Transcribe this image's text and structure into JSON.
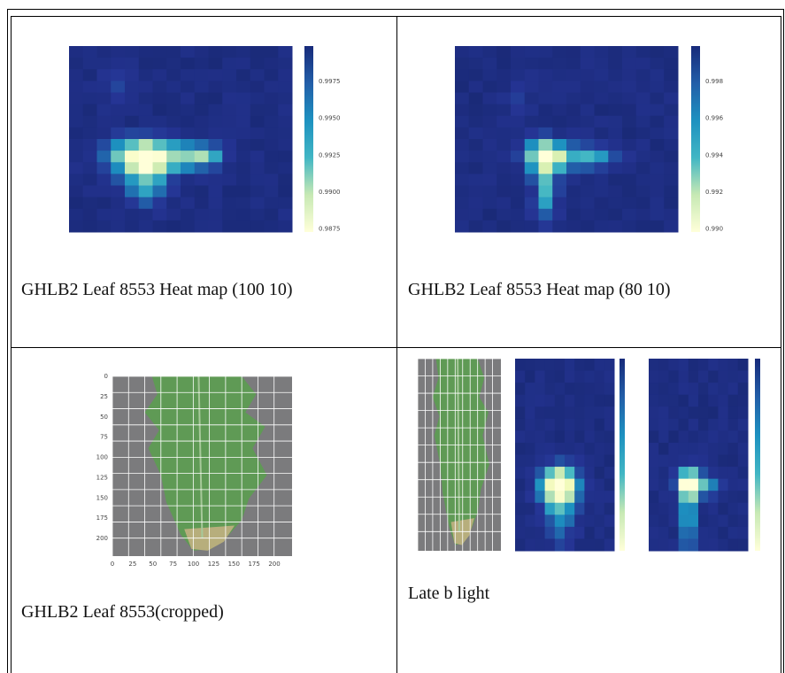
{
  "cells": [
    {
      "caption": "GHLB2 Leaf 8553 Heat map (100 10)",
      "colorbar_ticks": [
        "0.9975",
        "0.9950",
        "0.9925",
        "0.9900",
        "0.9875"
      ]
    },
    {
      "caption": "GHLB2 Leaf 8553 Heat map (80 10)",
      "colorbar_ticks": [
        "0.998",
        "0.996",
        "0.994",
        "0.992",
        "0.990"
      ]
    },
    {
      "caption": "GHLB2 Leaf 8553(cropped)",
      "y_ticks": [
        "0",
        "25",
        "50",
        "75",
        "100",
        "125",
        "150",
        "175",
        "200"
      ],
      "x_ticks": [
        "0",
        "25",
        "50",
        "75",
        "100",
        "125",
        "150",
        "175",
        "200"
      ]
    },
    {
      "caption": "Late b light"
    }
  ]
}
